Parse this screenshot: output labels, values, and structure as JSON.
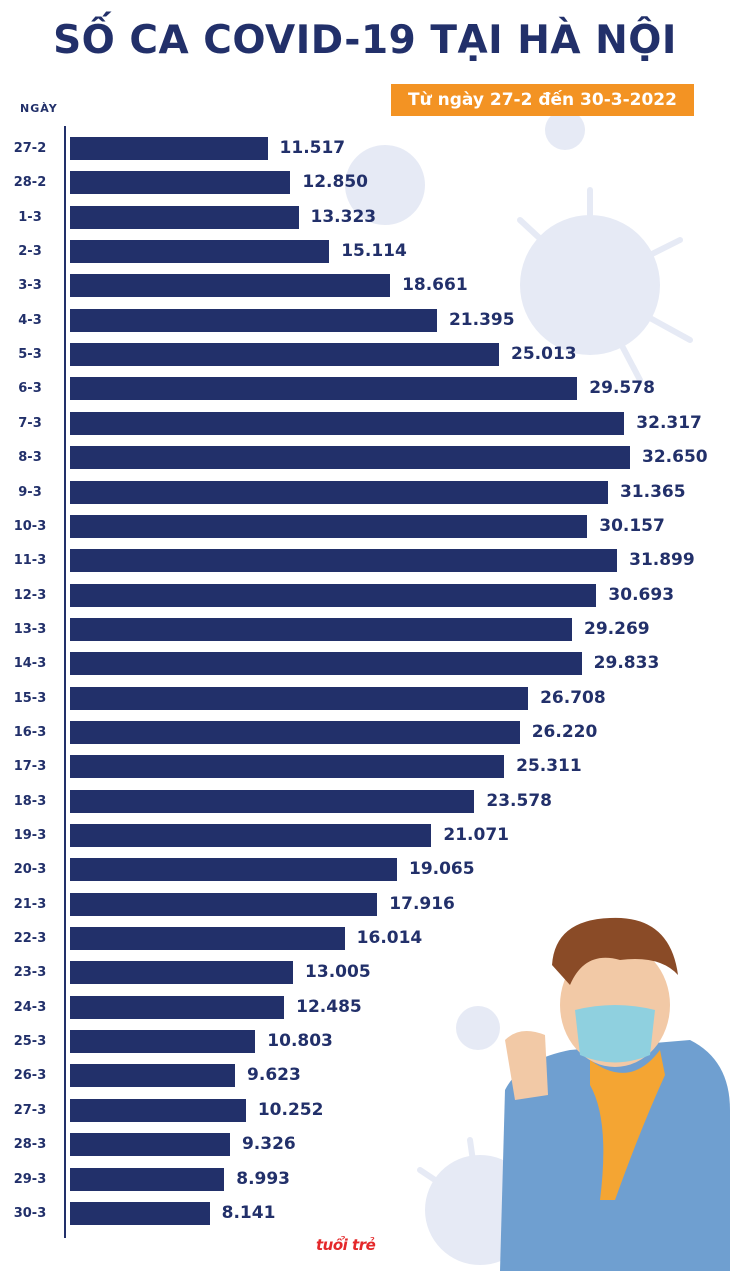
{
  "title": "SỐ CA COVID-19 TẠI HÀ NỘI",
  "subtitle": "Từ ngày 27-2 đến 30-3-2022",
  "logo_text": "tuổi trẻ",
  "colors": {
    "bar": "#22306a",
    "accent": "#f39323",
    "title": "#22306a",
    "logo": "#e4282a"
  },
  "chart_data": {
    "type": "bar",
    "orientation": "horizontal",
    "xlabel": "",
    "ylabel": "NGÀY",
    "grid": false,
    "categories": [
      "27-2",
      "28-2",
      "1-3",
      "2-3",
      "3-3",
      "4-3",
      "5-3",
      "6-3",
      "7-3",
      "8-3",
      "9-3",
      "10-3",
      "11-3",
      "12-3",
      "13-3",
      "14-3",
      "15-3",
      "16-3",
      "17-3",
      "18-3",
      "19-3",
      "20-3",
      "21-3",
      "22-3",
      "23-3",
      "24-3",
      "25-3",
      "26-3",
      "27-3",
      "28-3",
      "29-3",
      "30-3"
    ],
    "values": [
      11517,
      12850,
      13323,
      15114,
      18661,
      21395,
      25013,
      29578,
      32317,
      32650,
      31365,
      30157,
      31899,
      30693,
      29269,
      29833,
      26708,
      26220,
      25311,
      23578,
      21071,
      19065,
      17916,
      16014,
      13005,
      12485,
      10803,
      9623,
      10252,
      9326,
      8993,
      8141
    ],
    "value_labels": [
      "11.517",
      "12.850",
      "13.323",
      "15.114",
      "18.661",
      "21.395",
      "25.013",
      "29.578",
      "32.317",
      "32.650",
      "31.365",
      "30.157",
      "31.899",
      "30.693",
      "29.269",
      "29.833",
      "26.708",
      "26.220",
      "25.311",
      "23.578",
      "21.071",
      "19.065",
      "17.916",
      "16.014",
      "13.005",
      "12.485",
      "10.803",
      "9.623",
      "10.252",
      "9.326",
      "8.993",
      "8.141"
    ]
  }
}
